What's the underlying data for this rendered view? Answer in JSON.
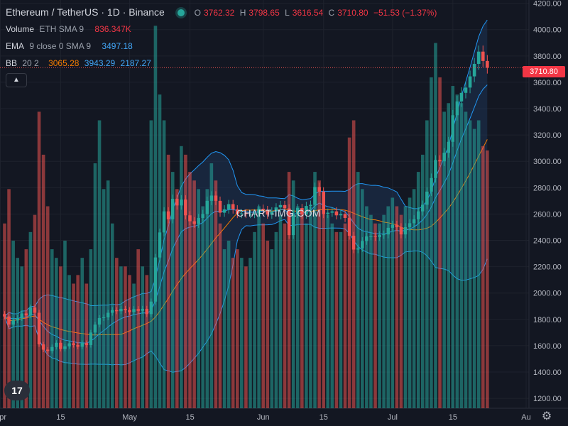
{
  "header": {
    "symbol": "Ethereum / TetherUS · 1D · Binance",
    "o_label": "O",
    "o_value": "3762.32",
    "h_label": "H",
    "h_value": "3798.65",
    "l_label": "L",
    "l_value": "3616.54",
    "c_label": "C",
    "c_value": "3710.80",
    "change": "−51.53 (−1.37%)"
  },
  "indicators": {
    "volume": {
      "name": "Volume",
      "params": "ETH  SMA 9",
      "value": "836.347K"
    },
    "ema": {
      "name": "EMA",
      "params": "9  close  0  SMA  9",
      "value": "3497.18"
    },
    "bb": {
      "name": "BB",
      "params": "20  2",
      "basis": "3065.28",
      "upper": "3943.29",
      "lower": "2187.27"
    }
  },
  "price_badge": "3710.80",
  "watermark": "CHART-IMG.COM",
  "logo_text": "17",
  "colors": {
    "background": "#131722",
    "up": "#26a69a",
    "down": "#ef5350",
    "bb_line": "#2196f3",
    "basis": "#f57c00",
    "bb_fill": "#1e3a5f",
    "grid": "#1e222d",
    "axis_text": "#b2b5be"
  },
  "icons": {
    "collapse": "chevron-up-icon",
    "settings": "gear-icon"
  },
  "chart_data": {
    "type": "candlestick",
    "y_ticks": [
      "4200.00",
      "4000.00",
      "3800.00",
      "3600.00",
      "3400.00",
      "3200.00",
      "3000.00",
      "2800.00",
      "2600.00",
      "2400.00",
      "2200.00",
      "2000.00",
      "1800.00",
      "1600.00",
      "1400.00",
      "1200.00"
    ],
    "y_range": [
      1125,
      4225
    ],
    "x_ticks": [
      {
        "label": "Apr",
        "index": 0
      },
      {
        "label": "15",
        "index": 14
      },
      {
        "label": "May",
        "index": 30
      },
      {
        "label": "15",
        "index": 44
      },
      {
        "label": "Jun",
        "index": 61
      },
      {
        "label": "15",
        "index": 75
      },
      {
        "label": "Jul",
        "index": 91
      },
      {
        "label": "15",
        "index": 105
      },
      {
        "label": "Au",
        "index": 122
      }
    ],
    "close": [
      1822,
      1760,
      1792,
      1810,
      1845,
      1830,
      1890,
      1850,
      1610,
      1570,
      1560,
      1590,
      1622,
      1575,
      1595,
      1618,
      1605,
      1592,
      1620,
      1605,
      1700,
      1760,
      1810,
      1815,
      1850,
      1870,
      1862,
      1880,
      1870,
      1855,
      1878,
      1865,
      1880,
      1840,
      1935,
      2270,
      2460,
      2620,
      2560,
      2715,
      2665,
      2710,
      2590,
      2545,
      2525,
      2570,
      2600,
      2700,
      2740,
      2700,
      2610,
      2635,
      2675,
      2635,
      2600,
      2605,
      2600,
      2600,
      2605,
      2640,
      2630,
      2595,
      2620,
      2650,
      2668,
      2643,
      2440,
      2600,
      2645,
      2595,
      2661,
      2670,
      2805,
      2770,
      2600,
      2610,
      2620,
      2590,
      2600,
      2570,
      2435,
      2330,
      2340,
      2395,
      2430,
      2430,
      2425,
      2440,
      2445,
      2495,
      2518,
      2500,
      2445,
      2500,
      2530,
      2560,
      2620,
      2670,
      2770,
      2873,
      3010,
      3000,
      3065,
      3148,
      3350,
      3455,
      3520,
      3560,
      3645,
      3740,
      3833,
      3762,
      3710.8
    ],
    "volume_range": [
      1125,
      1600
    ],
    "volume": [
      1340,
      1380,
      1320,
      1300,
      1290,
      1310,
      1330,
      1350,
      1470,
      1420,
      1360,
      1310,
      1300,
      1290,
      1320,
      1280,
      1270,
      1280,
      1300,
      1270,
      1310,
      1410,
      1460,
      1380,
      1390,
      1340,
      1300,
      1290,
      1290,
      1280,
      1270,
      1310,
      1290,
      1280,
      1460,
      1570,
      1490,
      1460,
      1420,
      1400,
      1380,
      1430,
      1420,
      1400,
      1390,
      1380,
      1360,
      1380,
      1410,
      1390,
      1340,
      1310,
      1320,
      1300,
      1310,
      1300,
      1290,
      1300,
      1330,
      1360,
      1340,
      1320,
      1310,
      1330,
      1350,
      1340,
      1400,
      1390,
      1360,
      1350,
      1340,
      1360,
      1400,
      1390,
      1360,
      1350,
      1340,
      1330,
      1330,
      1340,
      1440,
      1460,
      1400,
      1380,
      1360,
      1350,
      1340,
      1340,
      1350,
      1360,
      1370,
      1360,
      1350,
      1360,
      1370,
      1380,
      1400,
      1420,
      1460,
      1510,
      1550,
      1510,
      1470,
      1480,
      1500,
      1490,
      1480,
      1470,
      1460,
      1450,
      1460,
      1430,
      1425
    ]
  }
}
